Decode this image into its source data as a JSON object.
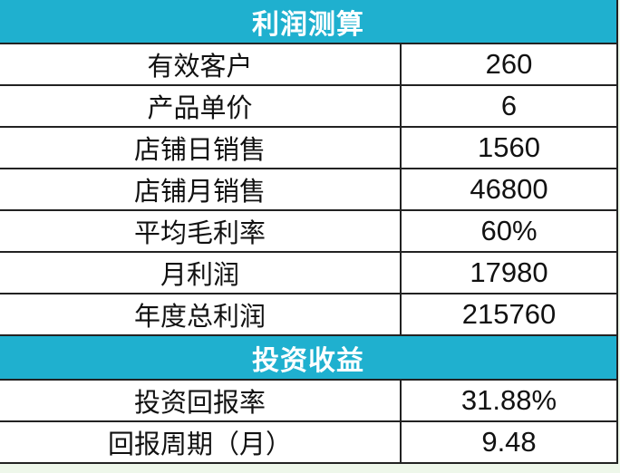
{
  "sections": [
    {
      "title": "利润测算",
      "rows": [
        {
          "label": "有效客户",
          "value": "260"
        },
        {
          "label": "产品单价",
          "value": "6"
        },
        {
          "label": "店铺日销售",
          "value": "1560"
        },
        {
          "label": "店铺月销售",
          "value": "46800"
        },
        {
          "label": "平均毛利率",
          "value": "60%"
        },
        {
          "label": "月利润",
          "value": "17980"
        },
        {
          "label": "年度总利润",
          "value": "215760"
        }
      ]
    },
    {
      "title": "投资收益",
      "rows": [
        {
          "label": "投资回报率",
          "value": "31.88%"
        },
        {
          "label": "回报周期（月）",
          "value": "9.48"
        }
      ]
    }
  ],
  "colors": {
    "header_bg": "#1fb0cf",
    "header_text": "#ffffff"
  }
}
